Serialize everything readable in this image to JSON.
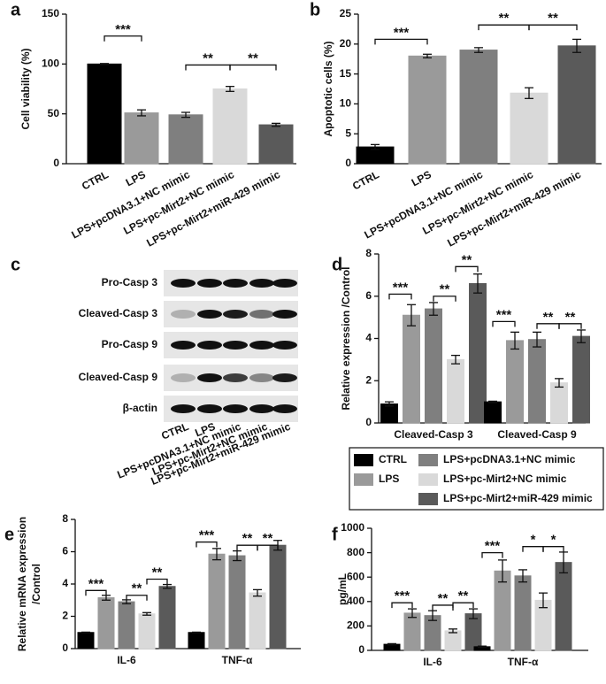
{
  "chart_data": [
    {
      "type": "bar",
      "label": "a",
      "ylabel": "Cell viability (%)",
      "categories": [
        "CTRL",
        "LPS",
        "LPS+pcDNA3.1+NC mimic",
        "LPS+pc-Mirt2+NC mimic",
        "LPS+pc-Mirt2+miR-429 mimic"
      ],
      "values": [
        100,
        51,
        49,
        75,
        39
      ],
      "errors": [
        0.5,
        3,
        2.5,
        2.5,
        1.5
      ],
      "colors": [
        "#000000",
        "#9a9a9a",
        "#7f7f7f",
        "#d9d9d9",
        "#5a5a5a"
      ],
      "ylim": [
        0,
        150
      ],
      "yticks": [
        0,
        50,
        100,
        150
      ],
      "annotations": [
        "***",
        "**",
        "**"
      ]
    },
    {
      "type": "bar",
      "label": "b",
      "ylabel": "Apoptotic cells (%)",
      "categories": [
        "CTRL",
        "LPS",
        "LPS+pcDNA3.1+NC mimic",
        "LPS+pc-Mirt2+NC mimic",
        "LPS+pc-Mirt2+miR-429 mimic"
      ],
      "values": [
        2.8,
        18,
        19,
        11.8,
        19.7
      ],
      "errors": [
        0.4,
        0.3,
        0.4,
        0.9,
        1.1
      ],
      "colors": [
        "#000000",
        "#9a9a9a",
        "#7f7f7f",
        "#d9d9d9",
        "#5a5a5a"
      ],
      "ylim": [
        0,
        25
      ],
      "yticks": [
        0,
        5,
        10,
        15,
        20,
        25
      ],
      "annotations": [
        "***",
        "**",
        "**"
      ]
    },
    {
      "type": "blot",
      "label": "c",
      "rows": [
        "Pro-Casp 3",
        "Cleaved-Casp 3",
        "Pro-Casp 9",
        "Cleaved-Casp 9",
        "β-actin"
      ],
      "lanes": [
        "CTRL",
        "LPS",
        "LPS+pcDNA3.1+NC mimic",
        "LPS+pc-Mirt2+NC mimic",
        "LPS+pc-Mirt2+miR-429 mimic"
      ]
    },
    {
      "type": "grouped-bar",
      "label": "d",
      "ylabel": "Relative expression /Control",
      "categories": [
        "Cleaved-Casp 3",
        "Cleaved-Casp 9"
      ],
      "series": [
        {
          "name": "CTRL",
          "color": "#000000",
          "values": [
            0.9,
            1.0
          ],
          "errors": [
            0.1,
            0.03
          ]
        },
        {
          "name": "LPS",
          "color": "#9a9a9a",
          "values": [
            5.1,
            3.9
          ],
          "errors": [
            0.5,
            0.4
          ]
        },
        {
          "name": "LPS+pcDNA3.1+NC mimic",
          "color": "#7f7f7f",
          "values": [
            5.4,
            3.95
          ],
          "errors": [
            0.3,
            0.35
          ]
        },
        {
          "name": "LPS+pc-Mirt2+NC mimic",
          "color": "#d9d9d9",
          "values": [
            3.0,
            1.9
          ],
          "errors": [
            0.2,
            0.2
          ]
        },
        {
          "name": "LPS+pc-Mirt2+miR-429 mimic",
          "color": "#5a5a5a",
          "values": [
            6.6,
            4.1
          ],
          "errors": [
            0.45,
            0.3
          ]
        }
      ],
      "ylim": [
        0,
        8
      ],
      "yticks": [
        0,
        2,
        4,
        6,
        8
      ],
      "legend": "below",
      "annotations": [
        "***",
        "**",
        "**",
        "***",
        "**",
        "**"
      ]
    },
    {
      "type": "grouped-bar",
      "label": "e",
      "ylabel": [
        "Relative mRNA expression",
        "/Control"
      ],
      "categories": [
        "IL-6",
        "TNF-α"
      ],
      "series": [
        {
          "color": "#000000",
          "values": [
            1.0,
            1.0
          ],
          "errors": [
            0.02,
            0.02
          ]
        },
        {
          "color": "#9a9a9a",
          "values": [
            3.15,
            5.85
          ],
          "errors": [
            0.15,
            0.35
          ]
        },
        {
          "color": "#7f7f7f",
          "values": [
            2.9,
            5.75
          ],
          "errors": [
            0.12,
            0.3
          ]
        },
        {
          "color": "#d9d9d9",
          "values": [
            2.15,
            3.45
          ],
          "errors": [
            0.08,
            0.2
          ]
        },
        {
          "color": "#5a5a5a",
          "values": [
            3.85,
            6.4
          ],
          "errors": [
            0.12,
            0.3
          ]
        }
      ],
      "ylim": [
        0,
        8
      ],
      "yticks": [
        0,
        2,
        4,
        6,
        8
      ],
      "annotations": [
        "***",
        "**",
        "**",
        "***",
        "**",
        "**"
      ]
    },
    {
      "type": "grouped-bar",
      "label": "f",
      "ylabel": "pg/mL",
      "categories": [
        "IL-6",
        "TNF-α"
      ],
      "series": [
        {
          "color": "#000000",
          "values": [
            50,
            30
          ],
          "errors": [
            5,
            5
          ]
        },
        {
          "color": "#9a9a9a",
          "values": [
            305,
            650
          ],
          "errors": [
            35,
            90
          ]
        },
        {
          "color": "#7f7f7f",
          "values": [
            285,
            610
          ],
          "errors": [
            40,
            50
          ]
        },
        {
          "color": "#d9d9d9",
          "values": [
            160,
            410
          ],
          "errors": [
            15,
            60
          ]
        },
        {
          "color": "#5a5a5a",
          "values": [
            300,
            720
          ],
          "errors": [
            40,
            85
          ]
        }
      ],
      "ylim": [
        0,
        1000
      ],
      "yticks": [
        0,
        200,
        400,
        600,
        800,
        1000
      ],
      "annotations": [
        "***",
        "**",
        "**",
        "***",
        "*",
        "*"
      ]
    }
  ]
}
